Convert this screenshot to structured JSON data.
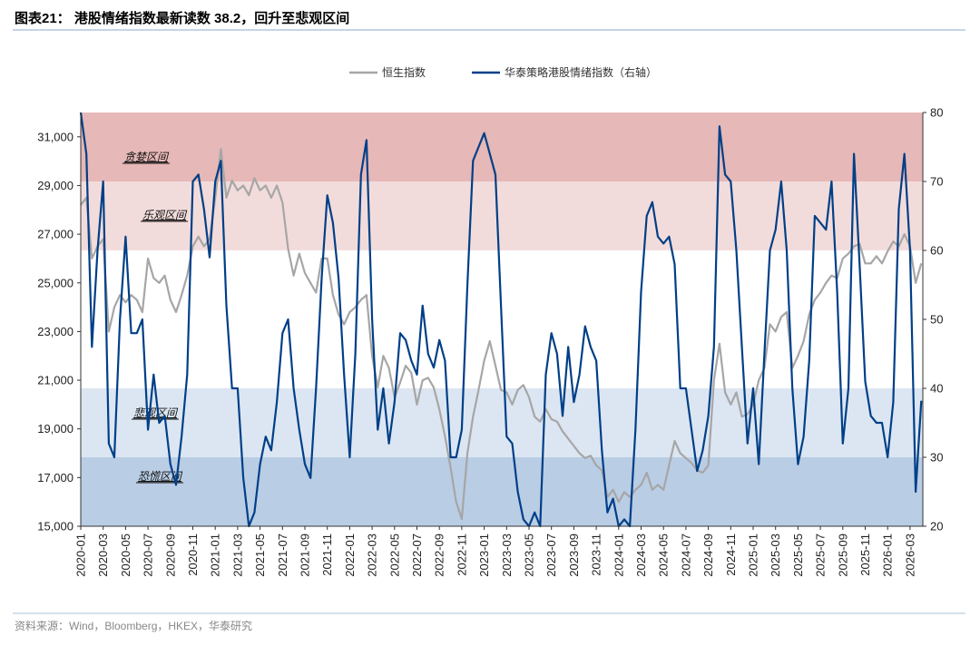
{
  "title": "图表21：  港股情绪指数最新读数 38.2，回升至悲观区间",
  "source": "资料来源：Wind，Bloomberg，HKEX，华泰研究",
  "chart_data": {
    "type": "line",
    "title": "图表21：  港股情绪指数最新读数 38.2，回升至悲观区间",
    "legend_position": "top-center",
    "grid": false,
    "x_tick_labels": [
      "2020-01",
      "2020-03",
      "2020-05",
      "2020-07",
      "2020-09",
      "2020-11",
      "2021-01",
      "2021-03",
      "2021-05",
      "2021-07",
      "2021-09",
      "2021-11",
      "2022-01",
      "2022-03",
      "2022-05",
      "2022-07",
      "2022-09",
      "2022-11",
      "2023-01",
      "2023-03",
      "2023-05",
      "2023-07",
      "2023-09",
      "2023-11",
      "2024-01",
      "2024-03",
      "2024-05",
      "2024-07",
      "2024-09",
      "2024-11",
      "2025-01",
      "2025-03",
      "2025-05",
      "2025-07",
      "2025-09",
      "2025-11",
      "2026-01",
      "2026-03"
    ],
    "y_left": {
      "range": [
        15000,
        32000
      ],
      "tick_labels": [
        "15,000",
        "17,000",
        "19,000",
        "21,000",
        "23,000",
        "25,000",
        "27,000",
        "29,000",
        "31,000"
      ],
      "ticks": [
        15000,
        17000,
        19000,
        21000,
        23000,
        25000,
        27000,
        29000,
        31000
      ]
    },
    "y_right": {
      "range": [
        20,
        80
      ],
      "tick_labels": [
        "20",
        "30",
        "40",
        "50",
        "60",
        "70",
        "80"
      ],
      "ticks": [
        20,
        30,
        40,
        50,
        60,
        70,
        80
      ]
    },
    "zones": [
      {
        "label": "贪婪区间",
        "range": [
          70,
          80
        ],
        "color": "#e6b8b7"
      },
      {
        "label": "乐观区间",
        "range": [
          60,
          70
        ],
        "color": "#f2dcdb"
      },
      {
        "label": "",
        "range": [
          40,
          60
        ],
        "color": "#ffffff"
      },
      {
        "label": "悲观区间",
        "range": [
          30,
          40
        ],
        "color": "#dce6f2"
      },
      {
        "label": "恐慌区间",
        "range": [
          20,
          30
        ],
        "color": "#b9cde5"
      }
    ],
    "x": [
      "2020-01-01",
      "2020-01-16",
      "2020-02-01",
      "2020-02-16",
      "2020-03-01",
      "2020-03-16",
      "2020-04-01",
      "2020-04-16",
      "2020-05-01",
      "2020-05-16",
      "2020-06-01",
      "2020-06-16",
      "2020-07-01",
      "2020-07-16",
      "2020-08-01",
      "2020-08-16",
      "2020-09-01",
      "2020-09-16",
      "2020-10-01",
      "2020-10-16",
      "2020-11-01",
      "2020-11-16",
      "2020-12-01",
      "2020-12-16",
      "2021-01-01",
      "2021-01-16",
      "2021-02-01",
      "2021-02-16",
      "2021-03-01",
      "2021-03-16",
      "2021-04-01",
      "2021-04-16",
      "2021-05-01",
      "2021-05-16",
      "2021-06-01",
      "2021-06-16",
      "2021-07-01",
      "2021-07-16",
      "2021-08-01",
      "2021-08-16",
      "2021-09-01",
      "2021-09-16",
      "2021-10-01",
      "2021-10-16",
      "2021-11-01",
      "2021-11-16",
      "2021-12-01",
      "2021-12-16",
      "2022-01-01",
      "2022-01-16",
      "2022-02-01",
      "2022-02-16",
      "2022-03-01",
      "2022-03-16",
      "2022-04-01",
      "2022-04-16",
      "2022-05-01",
      "2022-05-16",
      "2022-06-01",
      "2022-06-16",
      "2022-07-01",
      "2022-07-16",
      "2022-08-01",
      "2022-08-16",
      "2022-09-01",
      "2022-09-16",
      "2022-10-01",
      "2022-10-16",
      "2022-11-01",
      "2022-11-16",
      "2022-12-01",
      "2022-12-16",
      "2023-01-01",
      "2023-01-16",
      "2023-02-01",
      "2023-02-16",
      "2023-03-01",
      "2023-03-16",
      "2023-04-01",
      "2023-04-16",
      "2023-05-01",
      "2023-05-16",
      "2023-06-01",
      "2023-06-16",
      "2023-07-01",
      "2023-07-16",
      "2023-08-01",
      "2023-08-16",
      "2023-09-01",
      "2023-09-16",
      "2023-10-01",
      "2023-10-16",
      "2023-11-01",
      "2023-11-16",
      "2023-12-01",
      "2023-12-16",
      "2024-01-01",
      "2024-01-16",
      "2024-02-01",
      "2024-02-16",
      "2024-03-01",
      "2024-03-16",
      "2024-04-01",
      "2024-04-16",
      "2024-05-01",
      "2024-05-16",
      "2024-06-01",
      "2024-06-16",
      "2024-07-01",
      "2024-07-16",
      "2024-08-01",
      "2024-08-16",
      "2024-09-01",
      "2024-09-16",
      "2024-10-01",
      "2024-10-16",
      "2024-11-01",
      "2024-11-16",
      "2024-12-01",
      "2024-12-16",
      "2025-01-01",
      "2025-01-16",
      "2025-02-01",
      "2025-02-16",
      "2025-03-01",
      "2025-03-16",
      "2025-04-01",
      "2025-04-16",
      "2025-05-01",
      "2025-05-16",
      "2025-06-01",
      "2025-06-16",
      "2025-07-01",
      "2025-07-16",
      "2025-08-01",
      "2025-08-16",
      "2025-09-01",
      "2025-09-16",
      "2025-10-01",
      "2025-10-16",
      "2025-11-01",
      "2025-11-16",
      "2025-12-01",
      "2025-12-16",
      "2026-01-01",
      "2026-01-16",
      "2026-02-01",
      "2026-02-16",
      "2026-03-01",
      "2026-03-16",
      "2026-04-01"
    ],
    "series": [
      {
        "name": "恒生指数",
        "axis": "left",
        "color": "#a6a6a6",
        "values": [
          28200,
          28500,
          26000,
          26500,
          26800,
          23000,
          24000,
          24500,
          24200,
          24500,
          24300,
          23800,
          26000,
          25200,
          25000,
          25300,
          24300,
          23800,
          24500,
          25300,
          26500,
          26900,
          26500,
          26800,
          28500,
          30500,
          28500,
          29200,
          28800,
          29000,
          28600,
          29300,
          28800,
          29000,
          28500,
          29000,
          28300,
          26400,
          25300,
          26200,
          25400,
          25000,
          24600,
          26000,
          26000,
          24500,
          23700,
          23300,
          23800,
          24000,
          24300,
          24500,
          22000,
          20700,
          22000,
          21500,
          20300,
          20900,
          21600,
          21300,
          20000,
          21000,
          21100,
          20700,
          19800,
          18700,
          17400,
          16000,
          15300,
          18000,
          19500,
          20600,
          21800,
          22600,
          21600,
          20600,
          20500,
          20000,
          20600,
          20800,
          20300,
          19500,
          19300,
          19800,
          19400,
          19300,
          18900,
          18600,
          18300,
          18000,
          17800,
          17900,
          17500,
          17300,
          16200,
          16500,
          16000,
          16400,
          16200,
          16500,
          16700,
          17200,
          16500,
          16700,
          16500,
          17500,
          18500,
          18000,
          17800,
          17600,
          17300,
          17200,
          17500,
          21000,
          22500,
          20500,
          20000,
          20500,
          19500,
          19600,
          20000,
          21000,
          21500,
          23300,
          23000,
          23600,
          23800,
          21500,
          22000,
          22600,
          23700,
          24300,
          24600,
          25000,
          25300,
          25200,
          26000,
          26200,
          26500,
          26600,
          25800,
          25800,
          26100,
          25800,
          26300,
          26700,
          26500,
          27000,
          26500,
          25000,
          25800
        ]
      },
      {
        "name": "华泰策略港股情绪指数（右轴）",
        "axis": "right",
        "color": "#003f87",
        "values": [
          80,
          74,
          46,
          60,
          70,
          32,
          30,
          50,
          62,
          48,
          48,
          50,
          34,
          42,
          35,
          36,
          29,
          26,
          33,
          42,
          70,
          71,
          66,
          59,
          70,
          73,
          52,
          40,
          40,
          27,
          20,
          22,
          29,
          33,
          31,
          38,
          48,
          50,
          40,
          34,
          29,
          27,
          40,
          56,
          68,
          64,
          56,
          42,
          30,
          45,
          71,
          76,
          50,
          34,
          40,
          32,
          38,
          48,
          47,
          44,
          42,
          52,
          45,
          43,
          47,
          44,
          30,
          30,
          34,
          55,
          73,
          75,
          77,
          74,
          71,
          52,
          33,
          32,
          25,
          21,
          20,
          22,
          20,
          42,
          48,
          45,
          36,
          46,
          38,
          42,
          49,
          46,
          44,
          31,
          22,
          24,
          20,
          21,
          20,
          34,
          54,
          65,
          67,
          62,
          61,
          62,
          58,
          40,
          40,
          34,
          28,
          31,
          36,
          46,
          78,
          71,
          70,
          60,
          46,
          32,
          40,
          29,
          45,
          60,
          63,
          70,
          60,
          40,
          29,
          33,
          44,
          65,
          64,
          63,
          70,
          54,
          32,
          40,
          74,
          58,
          41,
          36,
          35,
          35,
          30,
          38,
          66,
          74,
          60,
          25,
          38.2
        ]
      }
    ],
    "latest_value": 38.2
  }
}
